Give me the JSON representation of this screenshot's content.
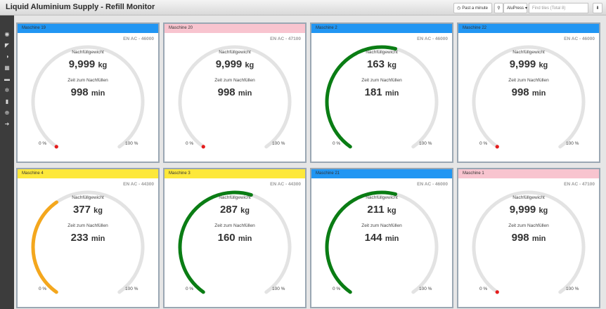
{
  "app": {
    "title": "Liquid Aluminium Supply - Refill Monitor"
  },
  "toolbar": {
    "time_label": "Past a minute",
    "filter_label": "AluPress",
    "search_placeholder": "Find tiles (Total 8)"
  },
  "sidebar": {
    "items": [
      {
        "icon": "dashboard-icon",
        "glyph": "◉"
      },
      {
        "icon": "megaphone-icon",
        "glyph": "◤"
      },
      {
        "icon": "gauge-icon",
        "glyph": "◑"
      },
      {
        "icon": "table-icon",
        "glyph": "▦"
      },
      {
        "icon": "device-icon",
        "glyph": "▬"
      },
      {
        "icon": "gears-icon",
        "glyph": "✲"
      },
      {
        "icon": "document-icon",
        "glyph": "▮"
      },
      {
        "icon": "globe-icon",
        "glyph": "⊕"
      },
      {
        "icon": "arrow-right-circle-icon",
        "glyph": "➜"
      }
    ]
  },
  "labels": {
    "refill_weight": "Nachfüllgewicht",
    "time_to_refill": "Zeit zum Nachfüllen",
    "min_pct": "0 %",
    "max_pct": "100 %",
    "unit_kg": "kg",
    "unit_min": "min"
  },
  "colors": {
    "blue": "#2196f3",
    "pink": "#f8c4cf",
    "yellow": "#fde83a",
    "green": "#0a7d14",
    "orange": "#f4a71d",
    "red": "#e51c1c",
    "track": "#e3e3e3"
  },
  "cards": [
    {
      "name": "Maschine 19",
      "header_color": "#2196f3",
      "alloy": "EN AC - 46000",
      "weight": "9,999",
      "time": "998",
      "fill": 0,
      "bar_color": "#e51c1c"
    },
    {
      "name": "Maschine 20",
      "header_color": "#f8c4cf",
      "alloy": "EN AC - 47100",
      "weight": "9,999",
      "time": "998",
      "fill": 0,
      "bar_color": "#e51c1c"
    },
    {
      "name": "Maschine 2",
      "header_color": "#2196f3",
      "alloy": "EN AC - 46000",
      "weight": "163",
      "time": "181",
      "fill": 0.55,
      "bar_color": "#0a7d14"
    },
    {
      "name": "Maschine 22",
      "header_color": "#2196f3",
      "alloy": "EN AC - 46000",
      "weight": "9,999",
      "time": "998",
      "fill": 0,
      "bar_color": "#e51c1c"
    },
    {
      "name": "Maschine 4",
      "header_color": "#fde83a",
      "alloy": "EN AC - 44300",
      "weight": "377",
      "time": "233",
      "fill": 0.38,
      "bar_color": "#f4a71d"
    },
    {
      "name": "Maschine 3",
      "header_color": "#fde83a",
      "alloy": "EN AC - 44300",
      "weight": "287",
      "time": "160",
      "fill": 0.56,
      "bar_color": "#0a7d14"
    },
    {
      "name": "Maschine 21",
      "header_color": "#2196f3",
      "alloy": "EN AC - 46000",
      "weight": "211",
      "time": "144",
      "fill": 0.55,
      "bar_color": "#0a7d14"
    },
    {
      "name": "Maschine 1",
      "header_color": "#f8c4cf",
      "alloy": "EN AC - 47100",
      "weight": "9,999",
      "time": "998",
      "fill": 0,
      "bar_color": "#e51c1c"
    }
  ]
}
